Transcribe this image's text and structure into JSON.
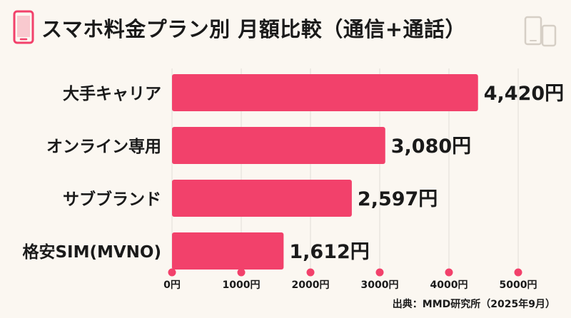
{
  "title": "スマホ料金プラン別 月額比較（通信+通話）",
  "source": "出典：MMD研究所（2025年9月）",
  "colors": {
    "background": "#fbf7f1",
    "bar": "#f2416b",
    "accent": "#f2416b",
    "icon_grey": "#d6cfc6",
    "text": "#1a1a1a"
  },
  "icons": {
    "left": "smartphone-icon",
    "right": "smartphones-icon"
  },
  "chart_data": {
    "type": "bar",
    "orientation": "horizontal",
    "categories": [
      "大手キャリア",
      "オンライン専用",
      "サブブランド",
      "格安SIM(MVNO)"
    ],
    "values": [
      4420,
      3080,
      2597,
      1612
    ],
    "value_labels": [
      "4,420円",
      "3,080円",
      "2,597円",
      "1,612円"
    ],
    "xlim": [
      0,
      5000
    ],
    "ticks": [
      0,
      1000,
      2000,
      3000,
      4000,
      5000
    ],
    "tick_labels": [
      "0円",
      "1000円",
      "2000円",
      "3000円",
      "4000円",
      "5000円"
    ],
    "grid": true,
    "legend": "none"
  }
}
